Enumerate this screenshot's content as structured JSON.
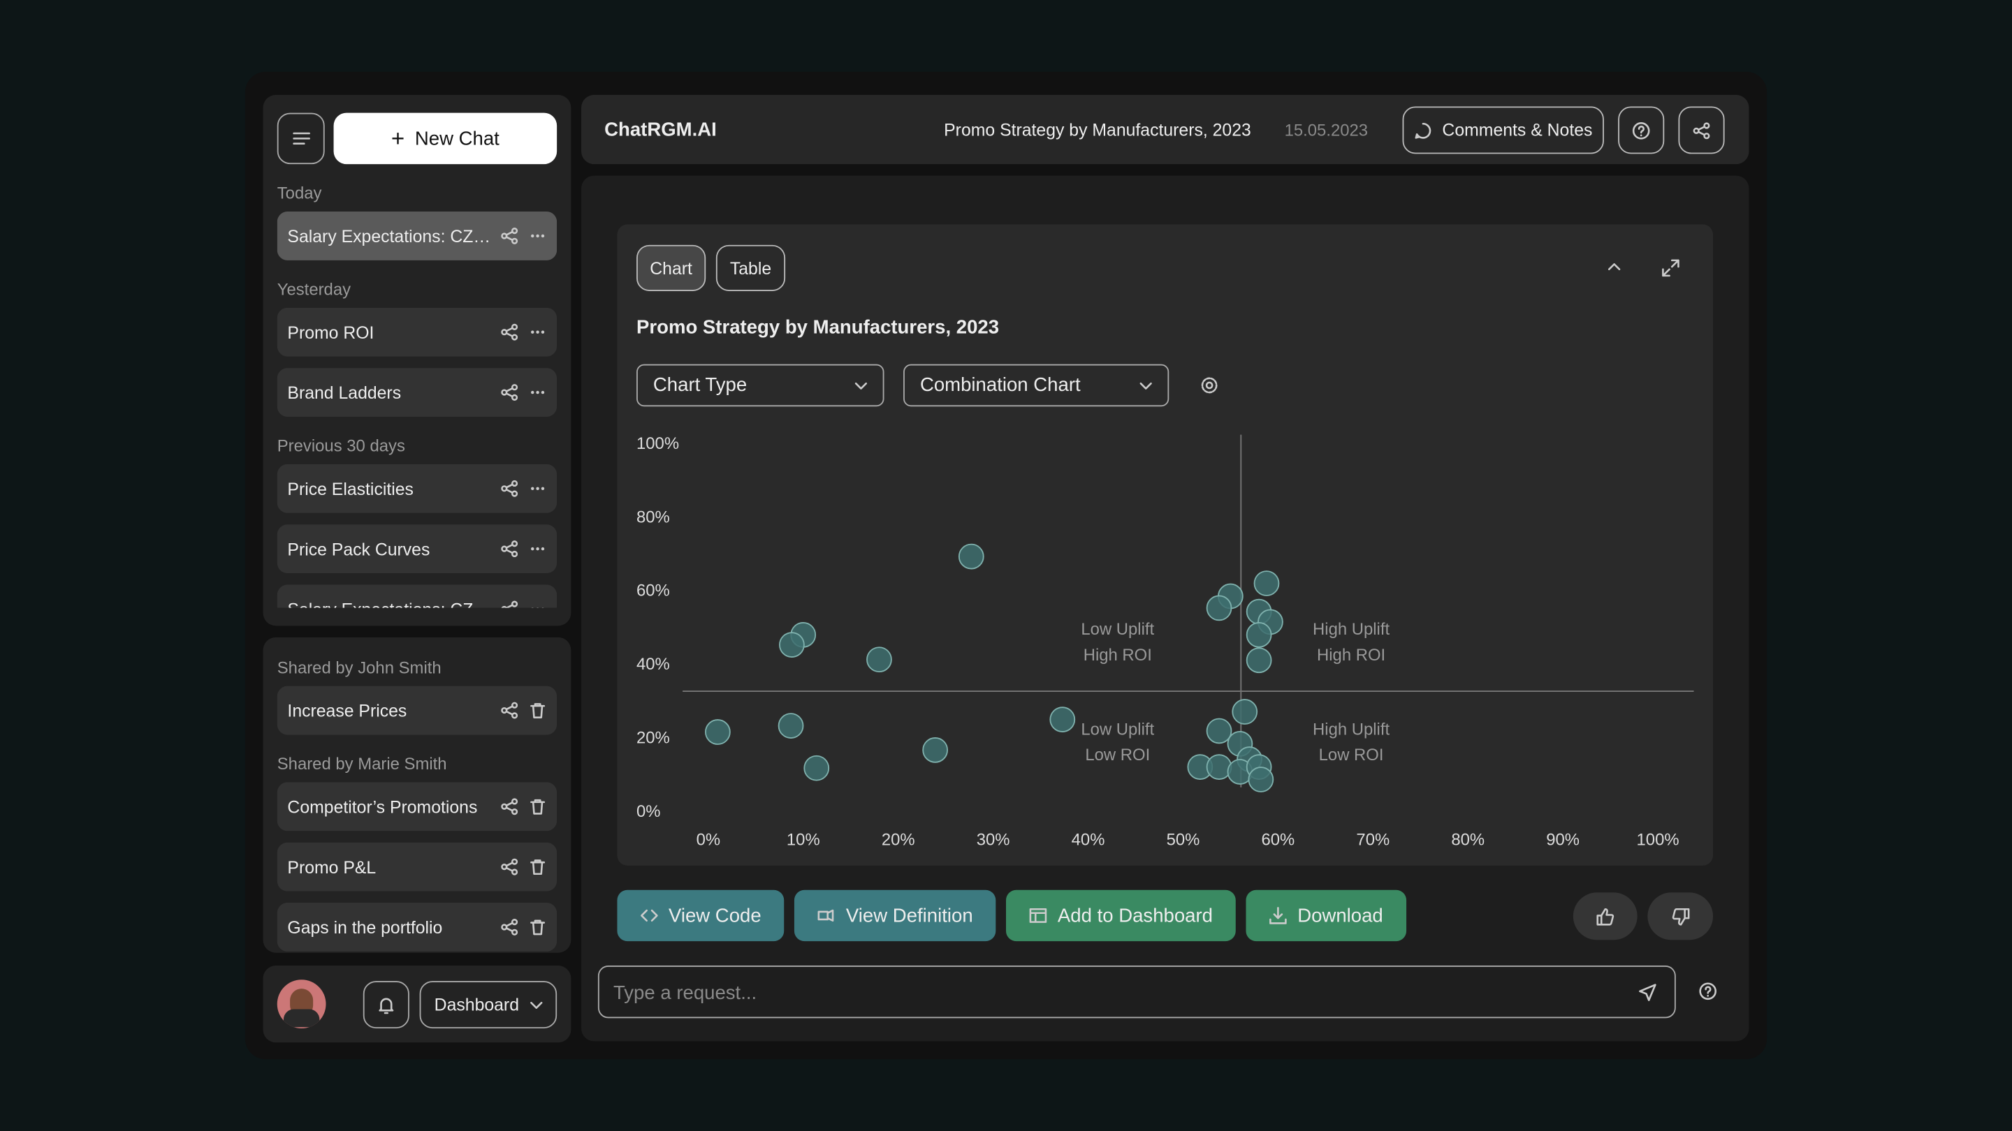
{
  "sidebar": {
    "new_chat": "New Chat",
    "recent": [
      {
        "label": "Today",
        "items": [
          "Salary Expectations: CZ…"
        ]
      },
      {
        "label": "Yesterday",
        "items": [
          "Promo ROI",
          "Brand Ladders"
        ]
      },
      {
        "label": "Previous 30 days",
        "items": [
          "Price Elasticities",
          "Price Pack Curves",
          "Salary Expectations: CZ"
        ]
      }
    ],
    "shared": [
      {
        "label": "Shared by John Smith",
        "items": [
          "Increase Prices"
        ]
      },
      {
        "label": "Shared by Marie Smith",
        "items": [
          "Competitor’s Promotions",
          "Promo P&L",
          "Gaps in the portfolio"
        ]
      }
    ],
    "dashboard": "Dashboard"
  },
  "header": {
    "brand": "ChatRGM.AI",
    "title": "Promo Strategy by Manufacturers, 2023",
    "date": "15.05.2023",
    "comments": "Comments & Notes"
  },
  "tabs": [
    "Chart",
    "Table"
  ],
  "controls": {
    "chart_type": "Chart Type",
    "chart_variant": "Combination Chart"
  },
  "chart_data": {
    "type": "scatter",
    "title": "Promo Strategy by Manufacturers, 2023",
    "x": [
      28.1,
      10.4,
      9.2,
      18.4,
      1.4,
      9.1,
      11.8,
      24.3,
      37.7,
      59.2,
      55.4,
      54.2,
      58.4,
      59.6,
      58.4,
      58.4,
      56.9,
      54.2,
      56.4,
      57.4,
      52.2,
      54.2,
      56.4,
      58.4,
      58.6
    ],
    "values": [
      69,
      47.7,
      45,
      41,
      21.3,
      23,
      11.5,
      16.4,
      24.7,
      61.7,
      58.2,
      55,
      54,
      51.2,
      47.7,
      40.8,
      26.8,
      21.6,
      18.1,
      13.9,
      11.8,
      11.8,
      10.5,
      11.8,
      8.4
    ],
    "color": "#3e6f6f",
    "edge_color": "#7fb1ad",
    "ref_x": 56.5,
    "ref_y": 32.4,
    "xlim": [
      0,
      100
    ],
    "ylim": [
      0,
      100
    ],
    "xticks": [
      {
        "value": 0,
        "label": "0%"
      },
      {
        "value": 10,
        "label": "10%"
      },
      {
        "value": 20,
        "label": "20%"
      },
      {
        "value": 30,
        "label": "30%"
      },
      {
        "value": 40,
        "label": "40%"
      },
      {
        "value": 50,
        "label": "50%"
      },
      {
        "value": 60,
        "label": "60%"
      },
      {
        "value": 70,
        "label": "70%"
      },
      {
        "value": 80,
        "label": "80%"
      },
      {
        "value": 90,
        "label": "90%"
      },
      {
        "value": 100,
        "label": "100%"
      }
    ],
    "yticks": [
      {
        "value": 0,
        "label": "0%"
      },
      {
        "value": 20,
        "label": "20%"
      },
      {
        "value": 40,
        "label": "40%"
      },
      {
        "value": 60,
        "label": "60%"
      },
      {
        "value": 80,
        "label": "80%"
      },
      {
        "value": 100,
        "label": "100%"
      }
    ],
    "annotations": [
      [
        "Low Uplift",
        "High ROI"
      ],
      [
        "High Uplift",
        "High ROI"
      ],
      [
        "Low Uplift",
        "Low ROI"
      ],
      [
        "High Uplift",
        "Low ROI"
      ]
    ]
  },
  "actions": [
    "View Code",
    "View Definition",
    "Add to Dashboard",
    "Download"
  ],
  "input_placeholder": "Type a request..."
}
